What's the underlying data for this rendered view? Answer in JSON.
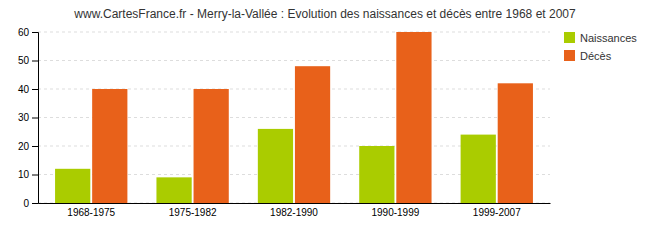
{
  "chart_data": {
    "type": "bar",
    "title": "www.CartesFrance.fr - Merry-la-Vallée : Evolution des naissances et décès entre 1968 et 2007",
    "categories": [
      "1968-1975",
      "1975-1982",
      "1982-1990",
      "1990-1999",
      "1999-2007"
    ],
    "series": [
      {
        "name": "Naissances",
        "color": "#AACC00",
        "values": [
          12,
          9,
          26,
          20,
          24
        ]
      },
      {
        "name": "Décès",
        "color": "#E8611A",
        "values": [
          40,
          40,
          48,
          60,
          42
        ]
      }
    ],
    "ylim": [
      0,
      60
    ],
    "yticks": [
      0,
      10,
      20,
      30,
      40,
      50,
      60
    ],
    "grid": true,
    "legend": "upper right"
  }
}
